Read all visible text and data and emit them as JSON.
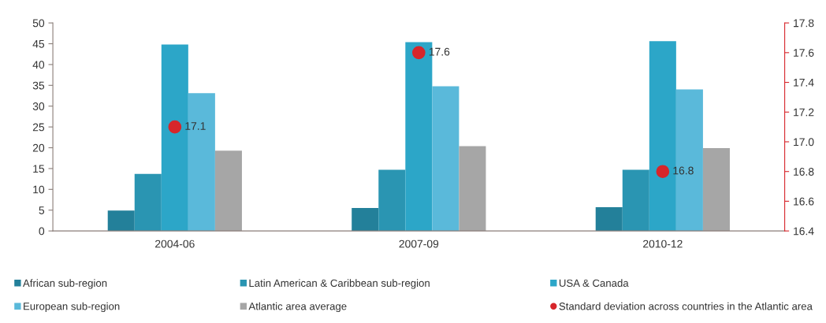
{
  "chart_data": {
    "type": "bar",
    "categories": [
      "2004-06",
      "2007-09",
      "2010-12"
    ],
    "series": [
      {
        "name": "African sub-region",
        "color": "#23809a",
        "values": [
          4.9,
          5.5,
          5.7
        ]
      },
      {
        "name": "Latin American & Caribbean sub-region",
        "color": "#2a95b2",
        "values": [
          13.7,
          14.7,
          14.7
        ]
      },
      {
        "name": "USA & Canada",
        "color": "#2ca6c8",
        "values": [
          44.8,
          45.4,
          45.6
        ]
      },
      {
        "name": "European sub-region",
        "color": "#5ab9da",
        "values": [
          33.1,
          34.8,
          34.0
        ]
      },
      {
        "name": "Atlantic area average",
        "color": "#a6a6a6",
        "values": [
          19.3,
          20.4,
          19.9
        ]
      },
      {
        "name": "Standard deviation across countries in the Atlantic area",
        "type": "scatter",
        "axis": "y2",
        "color": "#d7262b",
        "marker": "circle",
        "values": [
          17.1,
          17.6,
          16.8
        ],
        "value_labels": [
          "17.1",
          "17.6",
          "16.8"
        ]
      }
    ],
    "ylim": [
      0,
      50
    ],
    "yticks": [
      0,
      5,
      10,
      15,
      20,
      25,
      30,
      35,
      40,
      45,
      50
    ],
    "y2lim": [
      16.4,
      17.8
    ],
    "y2ticks": [
      16.4,
      16.6,
      16.8,
      {
        "value": 17.0,
        "label": "17.0"
      },
      17.2,
      17.4,
      17.6,
      17.8
    ],
    "legend": "bottom",
    "grid": false
  }
}
